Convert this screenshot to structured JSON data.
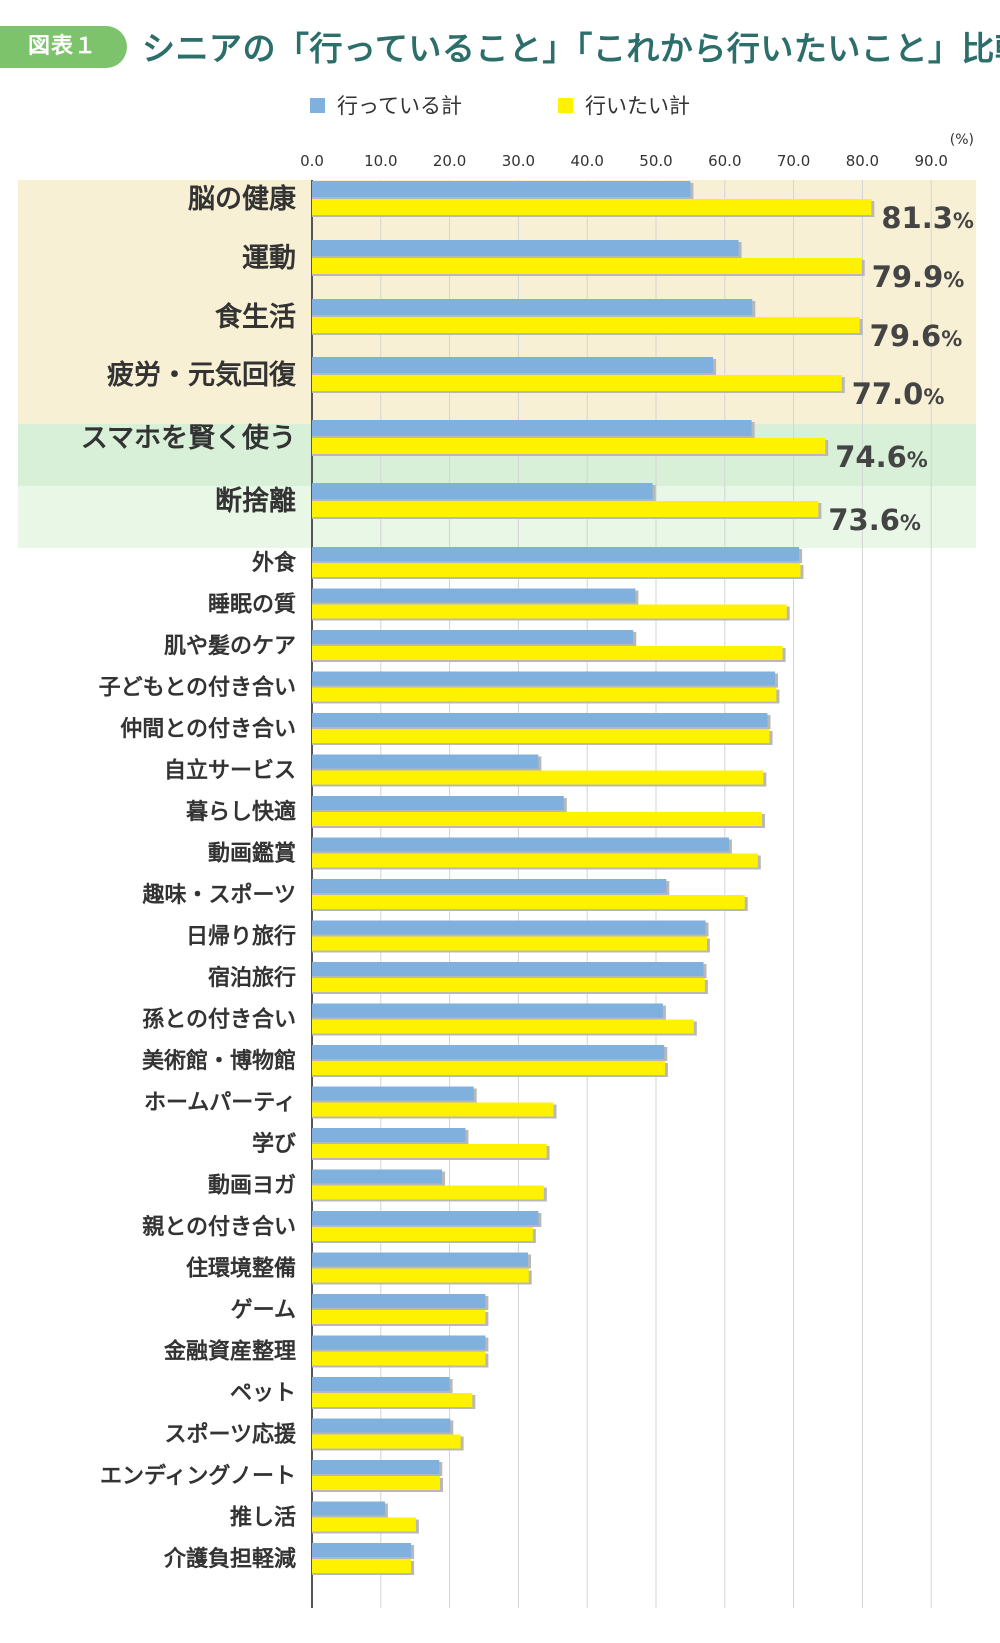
{
  "header": {
    "figure_label": "図表１",
    "title": "シニアの「行っていること」「これから行いたいこと」比較"
  },
  "colors": {
    "current": "#7fb0de",
    "desired": "#fff200",
    "band_top": "#f8f0d4",
    "band_green": "#d9f0d8",
    "band_light_green": "#e8f7e6",
    "badge": "#7dc36b",
    "title": "#2c6e6a"
  },
  "chart_data": {
    "type": "bar",
    "orientation": "horizontal",
    "unit_label": "(%)",
    "xlim": [
      0,
      90
    ],
    "ticks": [
      0,
      10,
      20,
      30,
      40,
      50,
      60,
      70,
      80,
      90
    ],
    "tick_labels": [
      "0.0",
      "10.0",
      "20.0",
      "30.0",
      "40.0",
      "50.0",
      "60.0",
      "70.0",
      "80.0",
      "90.0"
    ],
    "categories": [
      "脳の健康",
      "運動",
      "食生活",
      "疲労・元気回復",
      "スマホを賢く使う",
      "断捨離",
      "外食",
      "睡眠の質",
      "肌や髪のケア",
      "子どもとの付き合い",
      "仲間との付き合い",
      "自立サービス",
      "暮らし快適",
      "動画鑑賞",
      "趣味・スポーツ",
      "日帰り旅行",
      "宿泊旅行",
      "孫との付き合い",
      "美術館・博物館",
      "ホームパーティ",
      "学び",
      "動画ヨガ",
      "親との付き合い",
      "住環境整備",
      "ゲーム",
      "金融資産整理",
      "ペット",
      "スポーツ応援",
      "エンディングノート",
      "推し活",
      "介護負担軽減"
    ],
    "series": [
      {
        "name": "行っている計",
        "values": [
          55.0,
          62.0,
          64.0,
          58.3,
          63.9,
          49.5,
          70.8,
          47.0,
          46.7,
          67.3,
          66.2,
          32.9,
          36.6,
          60.6,
          51.5,
          57.2,
          56.9,
          51.0,
          51.2,
          23.5,
          22.3,
          18.9,
          32.9,
          31.4,
          25.2,
          25.2,
          20.0,
          20.1,
          18.5,
          10.6,
          14.4
        ]
      },
      {
        "name": "行いたい計",
        "values": [
          81.3,
          79.9,
          79.6,
          77.0,
          74.6,
          73.6,
          71.0,
          69.0,
          68.4,
          67.5,
          66.5,
          65.6,
          65.4,
          64.8,
          62.9,
          57.4,
          57.1,
          55.5,
          51.3,
          35.1,
          34.1,
          33.7,
          32.1,
          31.5,
          25.2,
          25.2,
          23.3,
          21.6,
          18.6,
          15.1,
          14.4
        ]
      }
    ],
    "data_labels": [
      {
        "category": "脳の健康",
        "value": "81.3",
        "unit": "%"
      },
      {
        "category": "運動",
        "value": "79.9",
        "unit": "%"
      },
      {
        "category": "食生活",
        "value": "79.6",
        "unit": "%"
      },
      {
        "category": "疲労・元気回復",
        "value": "77.0",
        "unit": "%"
      },
      {
        "category": "スマホを賢く使う",
        "value": "74.6",
        "unit": "%"
      },
      {
        "category": "断捨離",
        "value": "73.6",
        "unit": "%"
      }
    ],
    "title": "シニアの「行っていること」「これから行いたいこと」比較",
    "legend_position": "top",
    "grid": true
  }
}
